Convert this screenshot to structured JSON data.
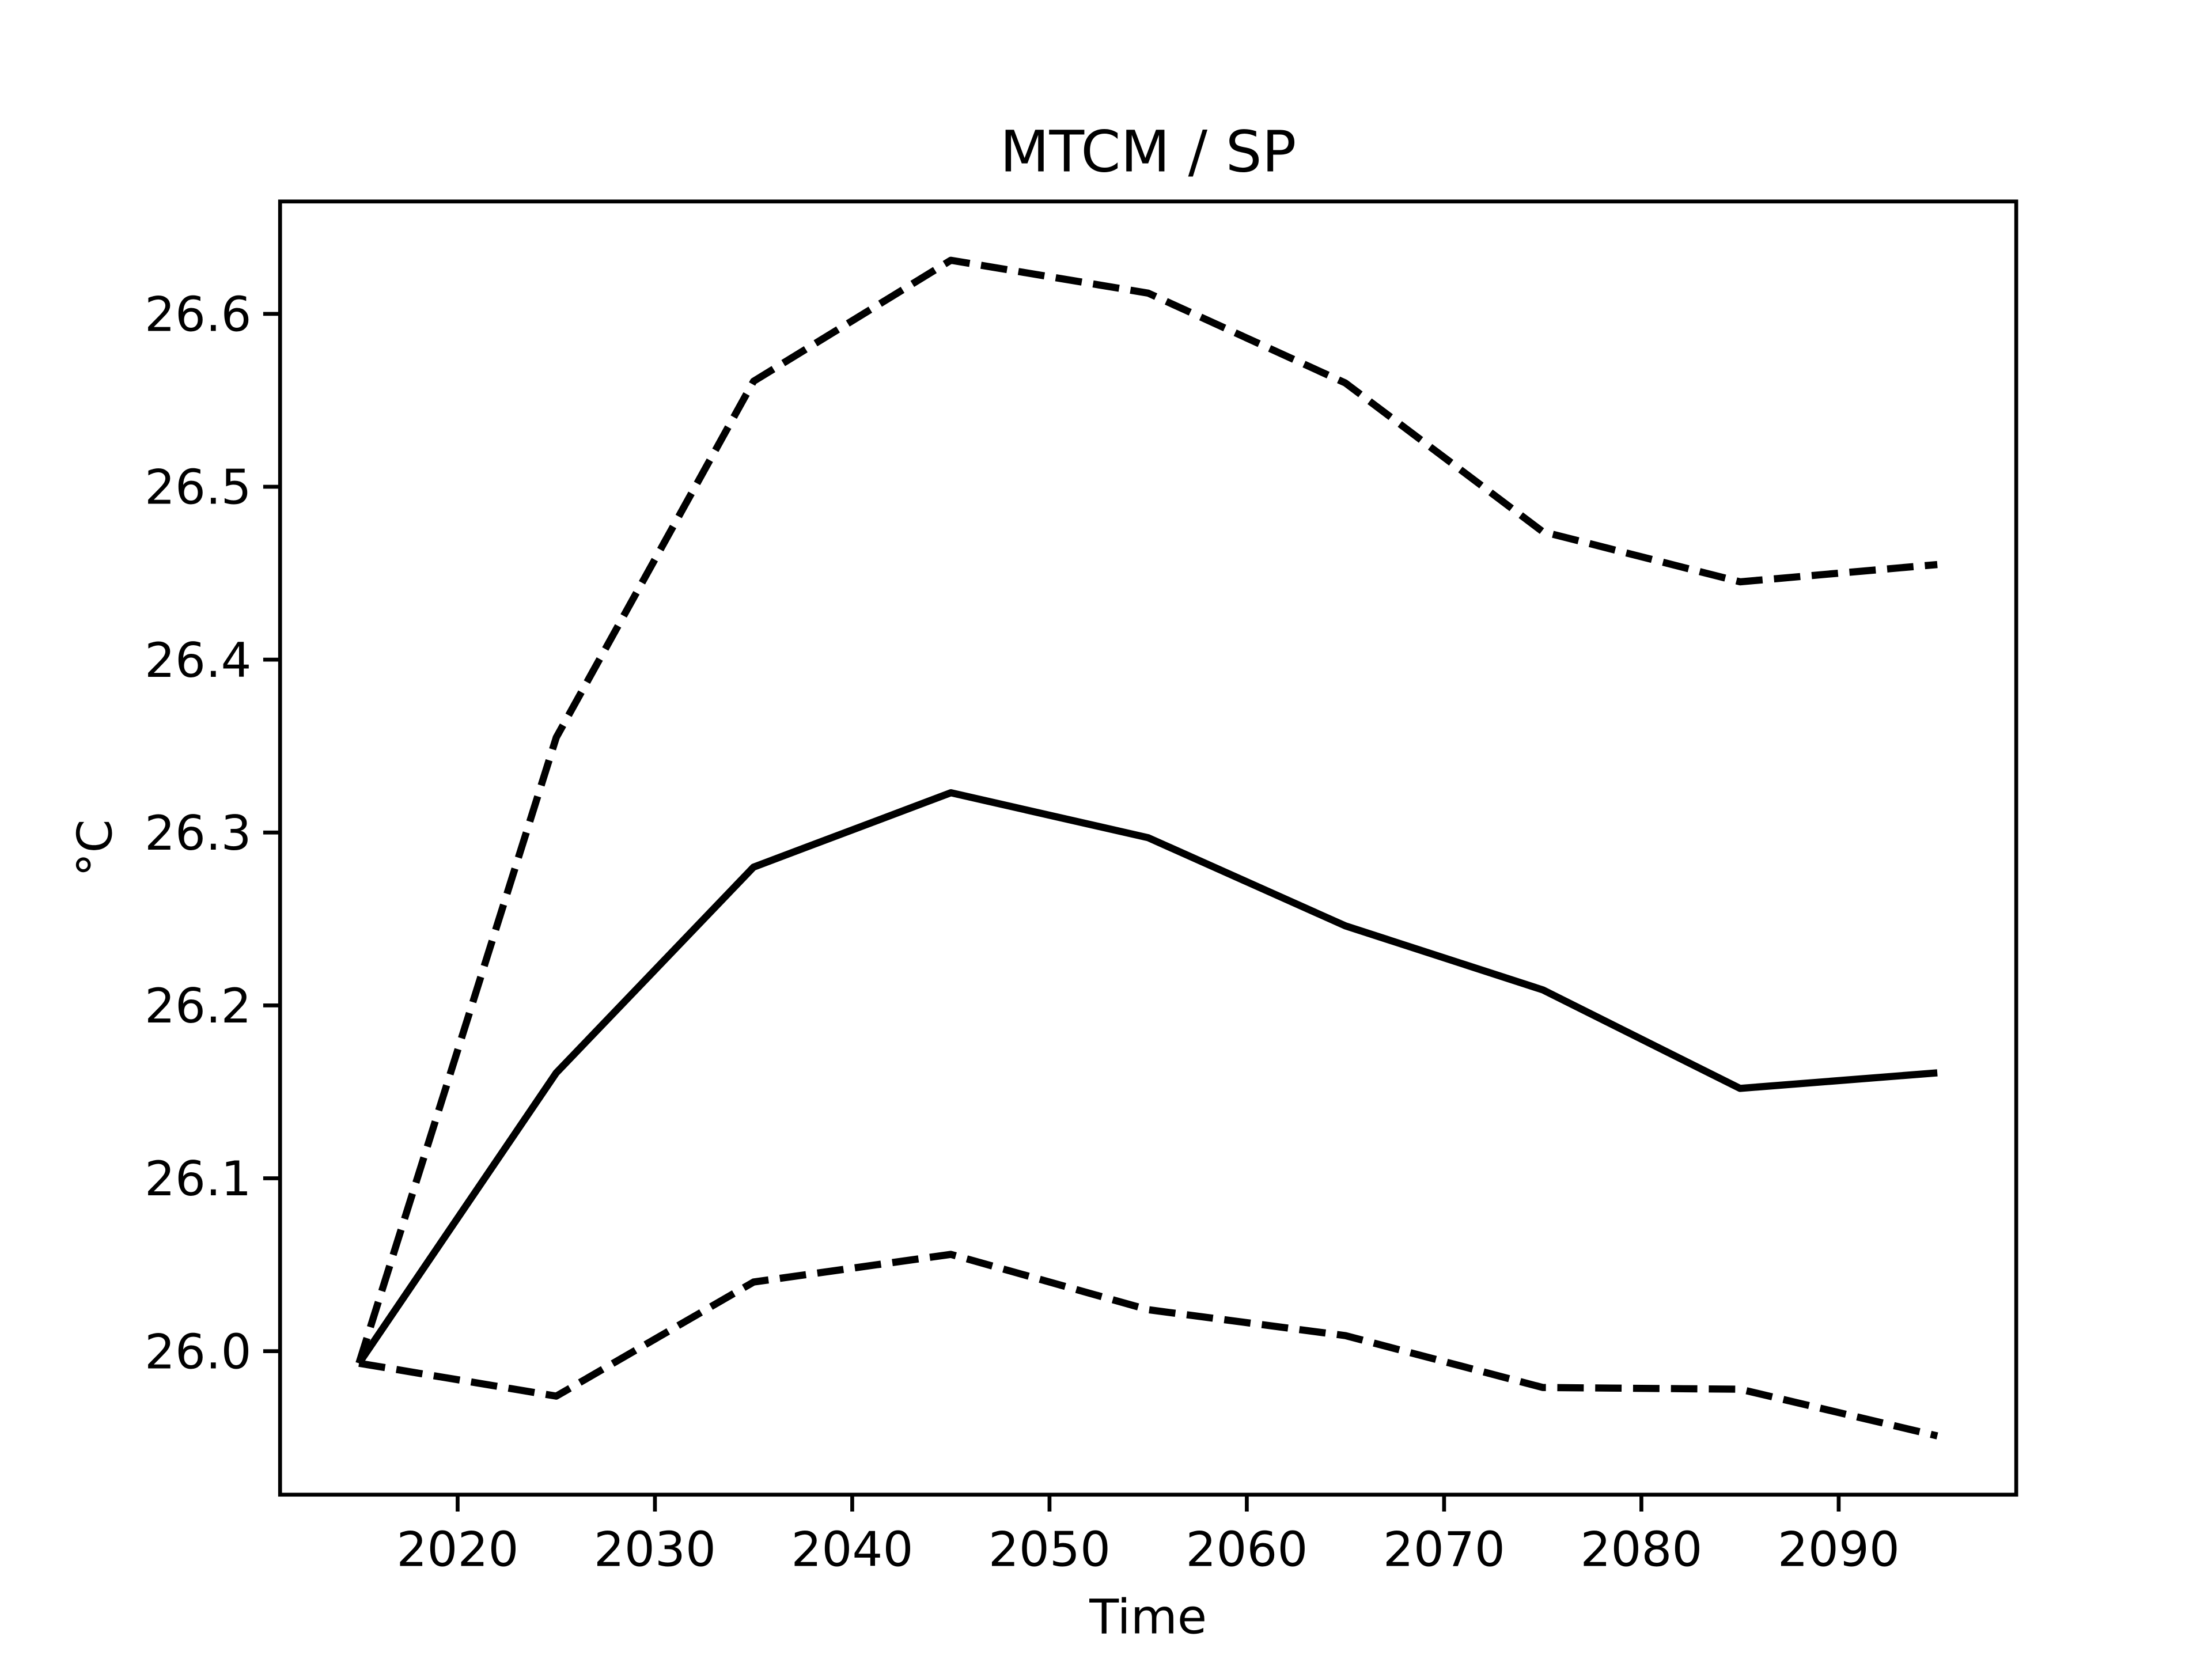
{
  "chart_data": {
    "type": "line",
    "title": "MTCM / SP",
    "x_label": "Time",
    "y_label": "°C",
    "x": [
      2015,
      2025,
      2035,
      2045,
      2055,
      2065,
      2075,
      2085,
      2095
    ],
    "series": [
      {
        "color": "#000000",
        "dash": "solid",
        "values": [
          25.993,
          26.161,
          26.28,
          26.323,
          26.297,
          26.246,
          26.209,
          26.152,
          26.161
        ]
      },
      {
        "color": "#000000",
        "dash": "dashed",
        "values": [
          25.993,
          26.355,
          26.561,
          26.631,
          26.612,
          26.56,
          26.474,
          26.445,
          26.455
        ]
      },
      {
        "color": "#000000",
        "dash": "dashed",
        "values": [
          25.993,
          25.974,
          26.04,
          26.056,
          26.024,
          26.009,
          25.979,
          25.978,
          25.951
        ]
      }
    ],
    "xlim": [
      2011,
      2099
    ],
    "ylim": [
      25.917,
      26.665
    ],
    "xticks": [
      2020,
      2030,
      2040,
      2050,
      2060,
      2070,
      2080,
      2090
    ],
    "yticks": [
      {
        "value": 26,
        "label": "26.0"
      },
      26.1,
      26.2,
      26.3,
      26.4,
      26.5,
      26.6
    ],
    "grid": false
  }
}
